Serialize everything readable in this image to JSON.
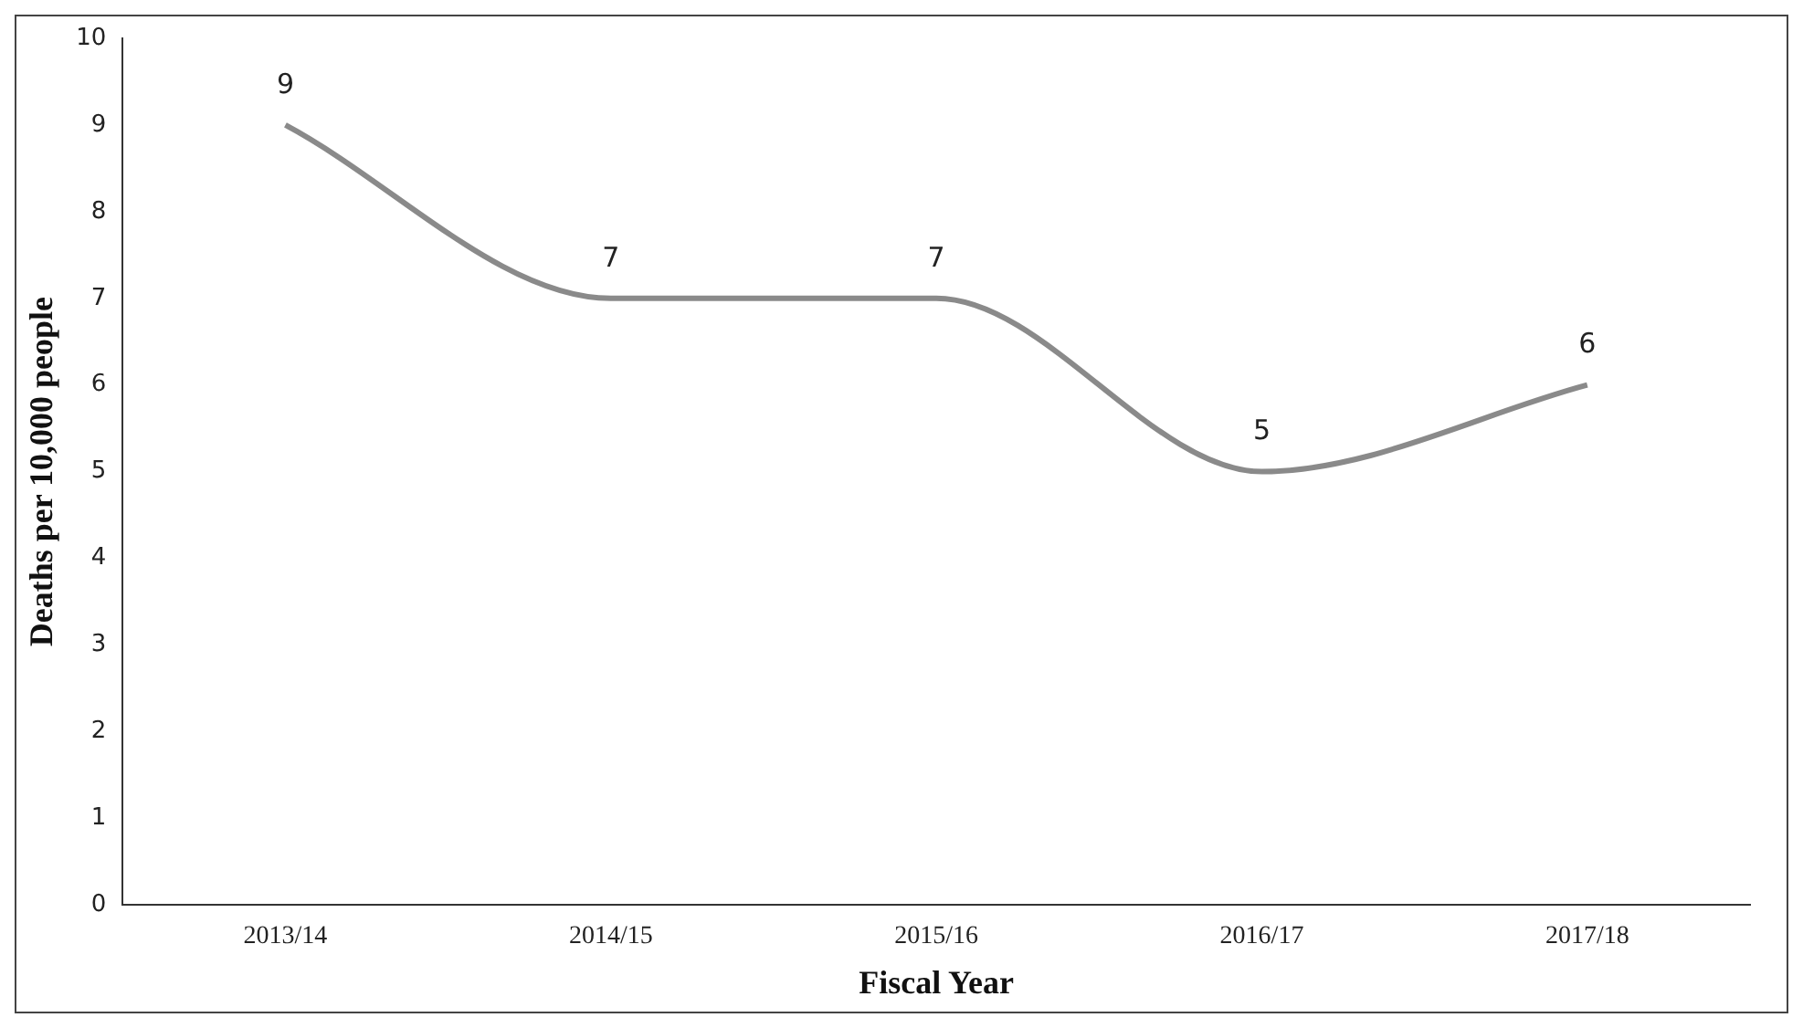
{
  "chart_data": {
    "type": "line",
    "xlabel": "Fiscal Year",
    "ylabel": "Deaths per 10,000 people",
    "categories": [
      "2013/14",
      "2014/15",
      "2015/16",
      "2016/17",
      "2017/18"
    ],
    "values": [
      9,
      7,
      7,
      5,
      6
    ],
    "color": "#8a8a8a",
    "ylim": [
      0,
      10
    ],
    "yticks": [
      0,
      1,
      2,
      3,
      4,
      5,
      6,
      7,
      8,
      9,
      10
    ],
    "grid": false,
    "data_labels": true,
    "marker": "none",
    "line_style": "solid",
    "legend": false
  }
}
